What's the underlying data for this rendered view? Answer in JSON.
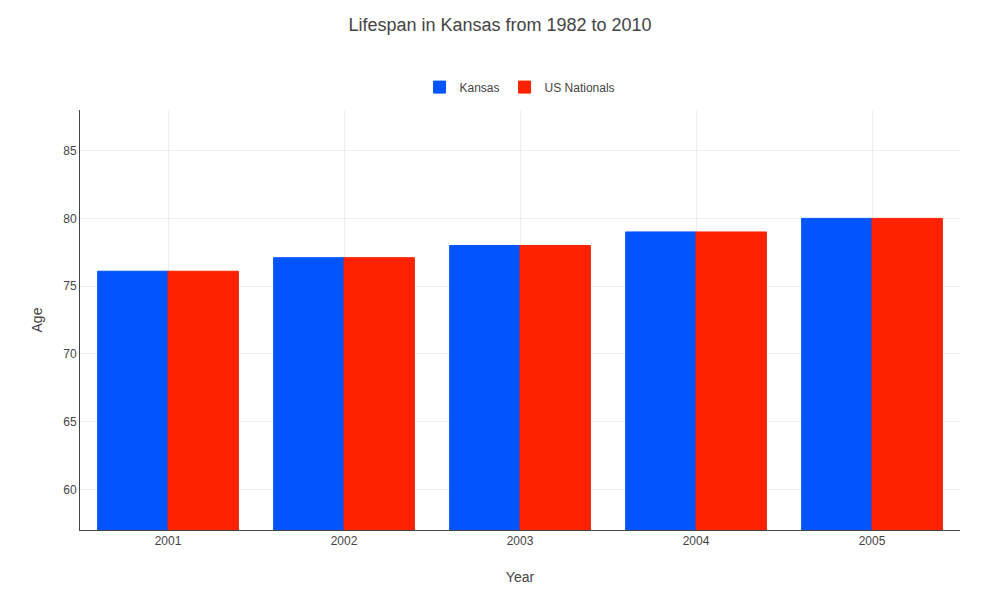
{
  "chart_data": {
    "type": "bar",
    "title": "Lifespan in Kansas from 1982 to 2010",
    "xlabel": "Year",
    "ylabel": "Age",
    "categories": [
      "2001",
      "2002",
      "2003",
      "2004",
      "2005"
    ],
    "series": [
      {
        "name": "Kansas",
        "color": "#0055ff",
        "values": [
          76.1,
          77.1,
          78.0,
          79.0,
          80.0
        ]
      },
      {
        "name": "US Nationals",
        "color": "#ff2200",
        "values": [
          76.1,
          77.1,
          78.0,
          79.0,
          80.0
        ]
      }
    ],
    "ylim": [
      57,
      88
    ],
    "yticks": [
      60,
      65,
      70,
      75,
      80,
      85
    ],
    "grid": true,
    "legend": "top"
  }
}
